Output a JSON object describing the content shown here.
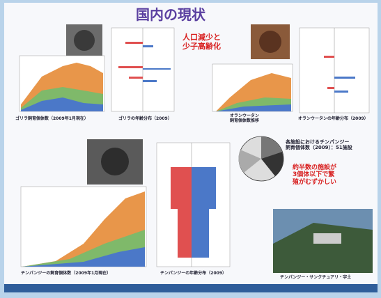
{
  "title": "国内の現状",
  "headline": [
    "人口減少と",
    "少子高齢化"
  ],
  "sections": [
    {
      "caption": "ゴリラ飼育個体数（2009年1月現在）"
    },
    {
      "caption": "ゴリラの年齢分布（2009）"
    },
    {
      "caption": [
        "オランウータン",
        "飼育個体数推移"
      ]
    },
    {
      "caption": "オランウータンの年齢分布（2009）"
    },
    {
      "caption": "チンパンジーの飼育個体数（2009年1月現在）"
    },
    {
      "caption": "チンパンジーの年齢分布（2009）"
    }
  ],
  "facility_note": [
    "各施設におけるチンパンジー",
    "飼育個体数（2009）：51施設"
  ],
  "warning": [
    "約半数の施設が",
    "3個体以下で繁",
    "殖がむずかしい"
  ],
  "photo_caption": "チンパンジー・サンクチュアリ・宇土"
}
